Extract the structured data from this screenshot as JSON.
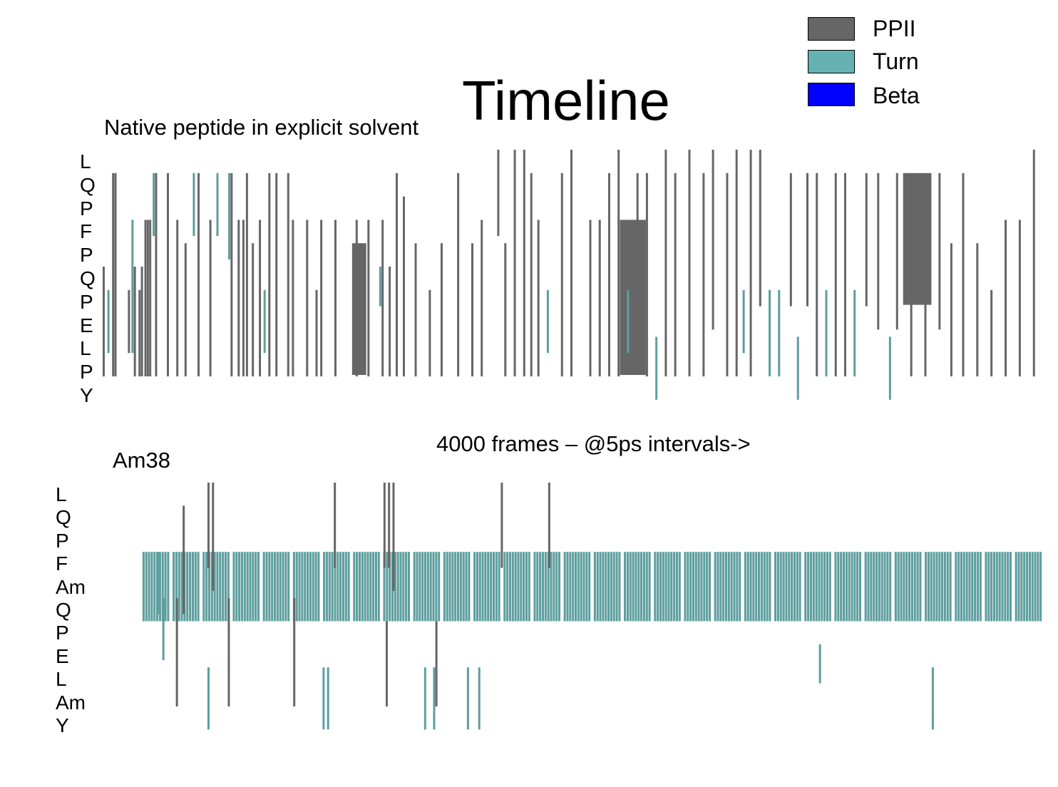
{
  "title": "Timeline",
  "legend": [
    {
      "label": "PPII",
      "color": "#666666"
    },
    {
      "label": "Turn",
      "color": "#66b2b2"
    },
    {
      "label": "Beta",
      "color": "#0000ff"
    }
  ],
  "frames_label": "4000 frames – @5ps intervals->",
  "chart_data": [
    {
      "type": "heatmap",
      "title": "Native peptide in explicit solvent",
      "xlabel": "4000 frames – @5ps intervals->",
      "x_range": [
        0,
        4000
      ],
      "residues": [
        "L",
        "Q",
        "P",
        "F",
        "P",
        "Q",
        "P",
        "E",
        "L",
        "P",
        "Y"
      ],
      "states": [
        "PPII",
        "Turn",
        "Beta"
      ],
      "segments": [
        {
          "x": 18,
          "r0": 5,
          "r1": 9,
          "s": "PPII"
        },
        {
          "x": 38,
          "r0": 6,
          "r1": 8,
          "s": "Turn"
        },
        {
          "x": 58,
          "r0": 1,
          "r1": 9,
          "s": "PPII"
        },
        {
          "x": 68,
          "r0": 1,
          "r1": 9,
          "s": "PPII"
        },
        {
          "x": 125,
          "r0": 6,
          "r1": 8,
          "s": "PPII"
        },
        {
          "x": 140,
          "r0": 3,
          "r1": 8,
          "s": "Turn"
        },
        {
          "x": 150,
          "r0": 5,
          "r1": 9,
          "s": "PPII"
        },
        {
          "x": 170,
          "r0": 6,
          "r1": 9,
          "s": "PPII"
        },
        {
          "x": 180,
          "r0": 5,
          "r1": 9,
          "s": "PPII"
        },
        {
          "x": 195,
          "r0": 3,
          "r1": 9,
          "s": "PPII"
        },
        {
          "x": 205,
          "r0": 3,
          "r1": 9,
          "s": "PPII"
        },
        {
          "x": 215,
          "r0": 3,
          "r1": 9,
          "s": "PPII"
        },
        {
          "x": 230,
          "r0": 1,
          "r1": 3,
          "s": "Turn"
        },
        {
          "x": 240,
          "r0": 1,
          "r1": 9,
          "s": "PPII"
        },
        {
          "x": 290,
          "r0": 1,
          "r1": 9,
          "s": "PPII"
        },
        {
          "x": 330,
          "r0": 3,
          "r1": 9,
          "s": "PPII"
        },
        {
          "x": 365,
          "r0": 4,
          "r1": 9,
          "s": "PPII"
        },
        {
          "x": 400,
          "r0": 1,
          "r1": 3,
          "s": "Turn"
        },
        {
          "x": 420,
          "r0": 1,
          "r1": 9,
          "s": "PPII"
        },
        {
          "x": 470,
          "r0": 3,
          "r1": 9,
          "s": "PPII"
        },
        {
          "x": 500,
          "r0": 1,
          "r1": 3,
          "s": "Turn"
        },
        {
          "x": 550,
          "r0": 1,
          "r1": 4,
          "s": "Turn"
        },
        {
          "x": 560,
          "r0": 1,
          "r1": 9,
          "s": "PPII"
        },
        {
          "x": 590,
          "r0": 3,
          "r1": 9,
          "s": "PPII"
        },
        {
          "x": 610,
          "r0": 3,
          "r1": 9,
          "s": "PPII"
        },
        {
          "x": 625,
          "r0": 1,
          "r1": 9,
          "s": "PPII"
        },
        {
          "x": 650,
          "r0": 4,
          "r1": 9,
          "s": "PPII"
        },
        {
          "x": 680,
          "r0": 3,
          "r1": 9,
          "s": "PPII"
        },
        {
          "x": 700,
          "r0": 6,
          "r1": 8,
          "s": "Turn"
        },
        {
          "x": 720,
          "r0": 1,
          "r1": 9,
          "s": "PPII"
        },
        {
          "x": 750,
          "r0": 1,
          "r1": 9,
          "s": "PPII"
        },
        {
          "x": 800,
          "r0": 1,
          "r1": 9,
          "s": "PPII"
        },
        {
          "x": 820,
          "r0": 3,
          "r1": 9,
          "s": "PPII"
        },
        {
          "x": 880,
          "r0": 3,
          "r1": 9,
          "s": "PPII"
        },
        {
          "x": 920,
          "r0": 6,
          "r1": 9,
          "s": "PPII"
        },
        {
          "x": 940,
          "r0": 3,
          "r1": 9,
          "s": "PPII"
        },
        {
          "x": 1000,
          "r0": 3,
          "r1": 9,
          "s": "PPII"
        },
        {
          "x": 1090,
          "r0": 3,
          "r1": 9,
          "s": "PPII"
        },
        {
          "x": 1140,
          "r0": 3,
          "r1": 9,
          "s": "PPII"
        },
        {
          "x": 1190,
          "r0": 5,
          "r1": 6,
          "s": "Turn"
        },
        {
          "x": 1200,
          "r0": 3,
          "r1": 9,
          "s": "PPII"
        },
        {
          "x": 1230,
          "r0": 5,
          "r1": 9,
          "s": "PPII"
        },
        {
          "x": 1260,
          "r0": 1,
          "r1": 9,
          "s": "PPII"
        },
        {
          "x": 1290,
          "r0": 2,
          "r1": 9,
          "s": "PPII"
        },
        {
          "x": 1340,
          "r0": 4,
          "r1": 9,
          "s": "PPII"
        },
        {
          "x": 1400,
          "r0": 6,
          "r1": 9,
          "s": "PPII"
        },
        {
          "x": 1450,
          "r0": 4,
          "r1": 9,
          "s": "PPII"
        },
        {
          "x": 1520,
          "r0": 1,
          "r1": 9,
          "s": "PPII"
        },
        {
          "x": 1580,
          "r0": 4,
          "r1": 9,
          "s": "PPII"
        },
        {
          "x": 1620,
          "r0": 3,
          "r1": 9,
          "s": "PPII"
        },
        {
          "x": 1690,
          "r0": 0,
          "r1": 3,
          "s": "PPII"
        },
        {
          "x": 1720,
          "r0": 4,
          "r1": 9,
          "s": "PPII"
        },
        {
          "x": 1760,
          "r0": 0,
          "r1": 9,
          "s": "PPII"
        },
        {
          "x": 1800,
          "r0": 0,
          "r1": 9,
          "s": "PPII"
        },
        {
          "x": 1830,
          "r0": 1,
          "r1": 9,
          "s": "PPII"
        },
        {
          "x": 1860,
          "r0": 3,
          "r1": 9,
          "s": "PPII"
        },
        {
          "x": 1900,
          "r0": 6,
          "r1": 8,
          "s": "Turn"
        },
        {
          "x": 1960,
          "r0": 1,
          "r1": 9,
          "s": "PPII"
        },
        {
          "x": 2000,
          "r0": 0,
          "r1": 9,
          "s": "PPII"
        },
        {
          "x": 2080,
          "r0": 3,
          "r1": 9,
          "s": "PPII"
        },
        {
          "x": 2120,
          "r0": 3,
          "r1": 9,
          "s": "PPII"
        },
        {
          "x": 2160,
          "r0": 1,
          "r1": 9,
          "s": "PPII"
        },
        {
          "x": 2200,
          "r0": 0,
          "r1": 9,
          "s": "PPII"
        },
        {
          "x": 2240,
          "r0": 6,
          "r1": 8,
          "s": "Turn"
        },
        {
          "x": 2280,
          "r0": 1,
          "r1": 6,
          "s": "PPII"
        },
        {
          "x": 2320,
          "r0": 1,
          "r1": 9,
          "s": "PPII"
        },
        {
          "x": 2360,
          "r0": 8,
          "r1": 10,
          "s": "Turn"
        },
        {
          "x": 2400,
          "r0": 0,
          "r1": 9,
          "s": "PPII"
        },
        {
          "x": 2440,
          "r0": 1,
          "r1": 9,
          "s": "PPII"
        },
        {
          "x": 2500,
          "r0": 0,
          "r1": 9,
          "s": "PPII"
        },
        {
          "x": 2560,
          "r0": 1,
          "r1": 9,
          "s": "PPII"
        },
        {
          "x": 2600,
          "r0": 0,
          "r1": 7,
          "s": "PPII"
        },
        {
          "x": 2660,
          "r0": 1,
          "r1": 9,
          "s": "PPII"
        },
        {
          "x": 2700,
          "r0": 0,
          "r1": 9,
          "s": "PPII"
        },
        {
          "x": 2730,
          "r0": 6,
          "r1": 8,
          "s": "Turn"
        },
        {
          "x": 2760,
          "r0": 0,
          "r1": 9,
          "s": "PPII"
        },
        {
          "x": 2800,
          "r0": 0,
          "r1": 6,
          "s": "PPII"
        },
        {
          "x": 2840,
          "r0": 6,
          "r1": 9,
          "s": "Turn"
        },
        {
          "x": 2880,
          "r0": 6,
          "r1": 9,
          "s": "Turn"
        },
        {
          "x": 2930,
          "r0": 1,
          "r1": 6,
          "s": "PPII"
        },
        {
          "x": 2960,
          "r0": 8,
          "r1": 10,
          "s": "Turn"
        },
        {
          "x": 3000,
          "r0": 1,
          "r1": 6,
          "s": "PPII"
        },
        {
          "x": 3040,
          "r0": 1,
          "r1": 9,
          "s": "PPII"
        },
        {
          "x": 3080,
          "r0": 6,
          "r1": 9,
          "s": "Turn"
        },
        {
          "x": 3120,
          "r0": 1,
          "r1": 9,
          "s": "PPII"
        },
        {
          "x": 3160,
          "r0": 1,
          "r1": 9,
          "s": "PPII"
        },
        {
          "x": 3200,
          "r0": 6,
          "r1": 9,
          "s": "Turn"
        },
        {
          "x": 3250,
          "r0": 1,
          "r1": 6,
          "s": "PPII"
        },
        {
          "x": 3300,
          "r0": 1,
          "r1": 7,
          "s": "PPII"
        },
        {
          "x": 3350,
          "r0": 8,
          "r1": 10,
          "s": "Turn"
        },
        {
          "x": 3380,
          "r0": 1,
          "r1": 7,
          "s": "PPII"
        },
        {
          "x": 3440,
          "r0": 4,
          "r1": 9,
          "s": "PPII"
        },
        {
          "x": 3500,
          "r0": 4,
          "r1": 9,
          "s": "PPII"
        },
        {
          "x": 3560,
          "r0": 1,
          "r1": 7,
          "s": "PPII"
        },
        {
          "x": 3610,
          "r0": 4,
          "r1": 9,
          "s": "PPII"
        },
        {
          "x": 3660,
          "r0": 1,
          "r1": 9,
          "s": "PPII"
        },
        {
          "x": 3720,
          "r0": 4,
          "r1": 9,
          "s": "PPII"
        },
        {
          "x": 3780,
          "r0": 6,
          "r1": 9,
          "s": "PPII"
        },
        {
          "x": 3840,
          "r0": 3,
          "r1": 9,
          "s": "PPII"
        },
        {
          "x": 3900,
          "r0": 3,
          "r1": 9,
          "s": "PPII"
        },
        {
          "x": 3960,
          "r0": 0,
          "r1": 9,
          "s": "PPII"
        }
      ],
      "blocks": [
        {
          "x0": 1075,
          "x1": 1135,
          "r0": 4,
          "r1": 9,
          "s": "PPII"
        },
        {
          "x0": 2210,
          "x1": 2320,
          "r0": 3,
          "r1": 9,
          "s": "PPII"
        },
        {
          "x0": 3410,
          "x1": 3530,
          "r0": 1,
          "r1": 6,
          "s": "PPII"
        }
      ]
    },
    {
      "type": "heatmap",
      "title": "Am38",
      "x_range": [
        0,
        4000
      ],
      "residues": [
        "L",
        "Q",
        "P",
        "F",
        "Am",
        "Q",
        "P",
        "E",
        "L",
        "Am",
        "Y"
      ],
      "states": [
        "PPII",
        "Turn",
        "Beta"
      ],
      "turn_band": {
        "r0": 3,
        "r1": 6,
        "x0": 0,
        "x1": 4000
      },
      "segments": [
        {
          "x": 80,
          "r0": 3,
          "r1": 5,
          "s": "Turn"
        },
        {
          "x": 100,
          "r0": 5,
          "r1": 7,
          "s": "Turn"
        },
        {
          "x": 160,
          "r0": 5,
          "r1": 9,
          "s": "PPII"
        },
        {
          "x": 190,
          "r0": 1,
          "r1": 5,
          "s": "PPII"
        },
        {
          "x": 300,
          "r0": 0,
          "r1": 3,
          "s": "PPII"
        },
        {
          "x": 320,
          "r0": 0,
          "r1": 4,
          "s": "PPII"
        },
        {
          "x": 300,
          "r0": 8,
          "r1": 10,
          "s": "Turn"
        },
        {
          "x": 390,
          "r0": 5,
          "r1": 9,
          "s": "PPII"
        },
        {
          "x": 680,
          "r0": 5,
          "r1": 9,
          "s": "PPII"
        },
        {
          "x": 810,
          "r0": 8,
          "r1": 10,
          "s": "Turn"
        },
        {
          "x": 830,
          "r0": 8,
          "r1": 10,
          "s": "Turn"
        },
        {
          "x": 860,
          "r0": 0,
          "r1": 3,
          "s": "PPII"
        },
        {
          "x": 1080,
          "r0": 0,
          "r1": 3,
          "s": "PPII"
        },
        {
          "x": 1100,
          "r0": 0,
          "r1": 3,
          "s": "PPII"
        },
        {
          "x": 1120,
          "r0": 0,
          "r1": 4,
          "s": "PPII"
        },
        {
          "x": 1090,
          "r0": 6,
          "r1": 9,
          "s": "PPII"
        },
        {
          "x": 1260,
          "r0": 8,
          "r1": 10,
          "s": "Turn"
        },
        {
          "x": 1300,
          "r0": 8,
          "r1": 10,
          "s": "Turn"
        },
        {
          "x": 1310,
          "r0": 6,
          "r1": 9,
          "s": "PPII"
        },
        {
          "x": 1450,
          "r0": 8,
          "r1": 10,
          "s": "Turn"
        },
        {
          "x": 1500,
          "r0": 8,
          "r1": 10,
          "s": "Turn"
        },
        {
          "x": 1600,
          "r0": 0,
          "r1": 3,
          "s": "PPII"
        },
        {
          "x": 1810,
          "r0": 0,
          "r1": 3,
          "s": "PPII"
        },
        {
          "x": 3010,
          "r0": 7,
          "r1": 8,
          "s": "Turn"
        },
        {
          "x": 3510,
          "r0": 8,
          "r1": 10,
          "s": "Turn"
        }
      ]
    }
  ]
}
